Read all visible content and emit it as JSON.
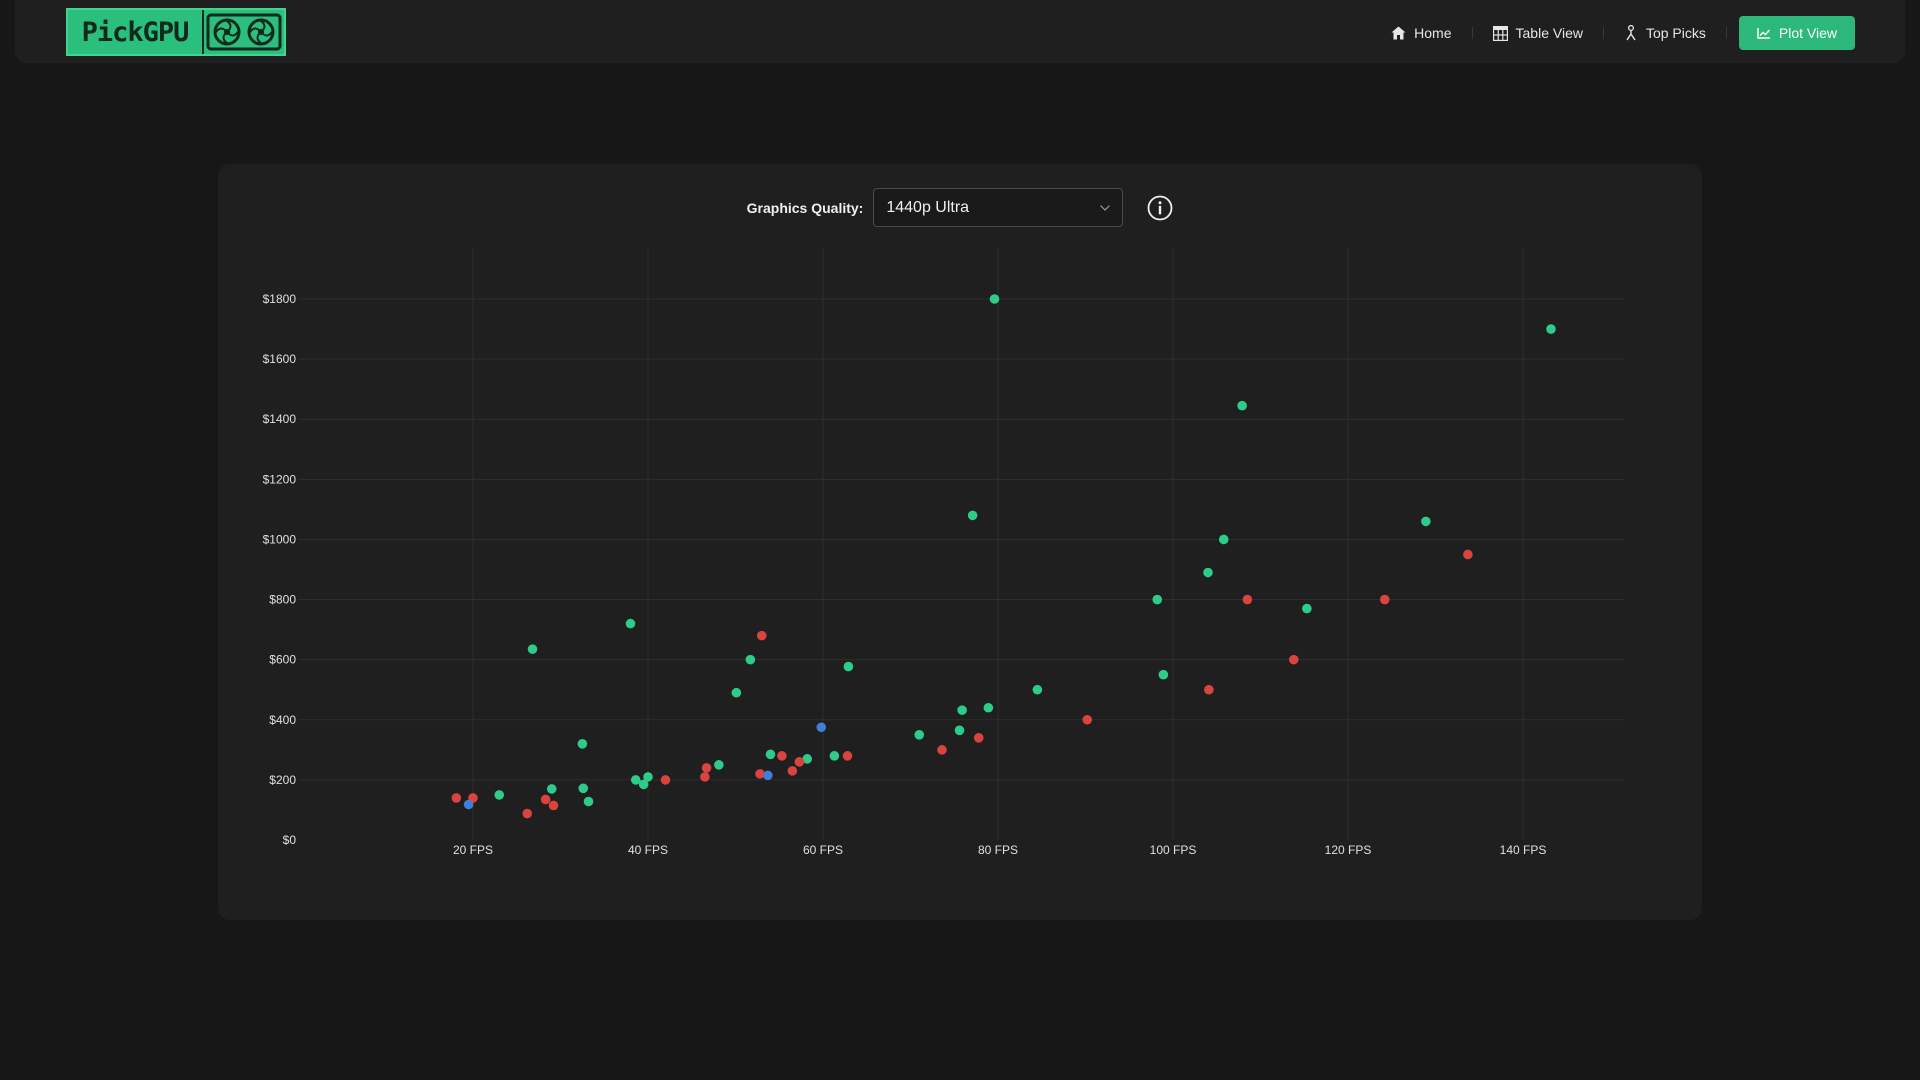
{
  "app": {
    "logo_text": "PickGPU"
  },
  "nav": {
    "home": "Home",
    "table_view": "Table View",
    "top_picks": "Top Picks",
    "plot_view": "Plot View"
  },
  "controls": {
    "quality_label": "Graphics Quality:",
    "quality_value": "1440p Ultra"
  },
  "colors": {
    "accent": "#2bb87a",
    "green": "#2ecc8a",
    "red": "#d9443f",
    "blue": "#3f7fd9"
  },
  "chart_data": {
    "type": "scatter",
    "x_ticks": [
      "20 FPS",
      "40 FPS",
      "60 FPS",
      "80 FPS",
      "100 FPS",
      "120 FPS",
      "140 FPS"
    ],
    "y_ticks": [
      "$0",
      "$200",
      "$400",
      "$600",
      "$800",
      "$1000",
      "$1200",
      "$1400",
      "$1600",
      "$1800"
    ],
    "xlim": [
      0,
      152
    ],
    "ylim": [
      0,
      1800
    ],
    "grid": true,
    "series": [
      {
        "color_key": "green",
        "points": [
          [
            79.6,
            1800
          ],
          [
            143.2,
            1700
          ],
          [
            107.9,
            1445
          ],
          [
            77.1,
            1080
          ],
          [
            128.9,
            1060
          ],
          [
            105.8,
            1000
          ],
          [
            104.0,
            890
          ],
          [
            98.2,
            800
          ],
          [
            115.3,
            770
          ],
          [
            26.8,
            635
          ],
          [
            38.0,
            720
          ],
          [
            51.7,
            600
          ],
          [
            62.9,
            577
          ],
          [
            50.1,
            490
          ],
          [
            84.5,
            500
          ],
          [
            98.9,
            550
          ],
          [
            75.9,
            432
          ],
          [
            78.9,
            440
          ],
          [
            75.6,
            365
          ],
          [
            71.0,
            350
          ],
          [
            32.5,
            320
          ],
          [
            54.0,
            285
          ],
          [
            61.3,
            280
          ],
          [
            58.2,
            270
          ],
          [
            48.1,
            250
          ],
          [
            40.0,
            210
          ],
          [
            38.6,
            200
          ],
          [
            39.5,
            185
          ],
          [
            32.6,
            172
          ],
          [
            29.0,
            170
          ],
          [
            23.0,
            150
          ],
          [
            33.2,
            128
          ]
        ]
      },
      {
        "color_key": "red",
        "points": [
          [
            53.0,
            680
          ],
          [
            133.7,
            950
          ],
          [
            108.5,
            800
          ],
          [
            124.2,
            800
          ],
          [
            113.8,
            600
          ],
          [
            104.1,
            500
          ],
          [
            90.2,
            400
          ],
          [
            77.8,
            340
          ],
          [
            73.6,
            300
          ],
          [
            55.3,
            280
          ],
          [
            62.8,
            280
          ],
          [
            57.3,
            260
          ],
          [
            46.7,
            240
          ],
          [
            56.5,
            230
          ],
          [
            52.8,
            220
          ],
          [
            46.5,
            210
          ],
          [
            42.0,
            200
          ],
          [
            18.1,
            140
          ],
          [
            20.0,
            140
          ],
          [
            28.3,
            135
          ],
          [
            29.2,
            115
          ],
          [
            26.2,
            88
          ]
        ]
      },
      {
        "color_key": "blue",
        "points": [
          [
            59.8,
            375
          ],
          [
            53.7,
            215
          ],
          [
            19.5,
            118
          ]
        ]
      }
    ]
  }
}
